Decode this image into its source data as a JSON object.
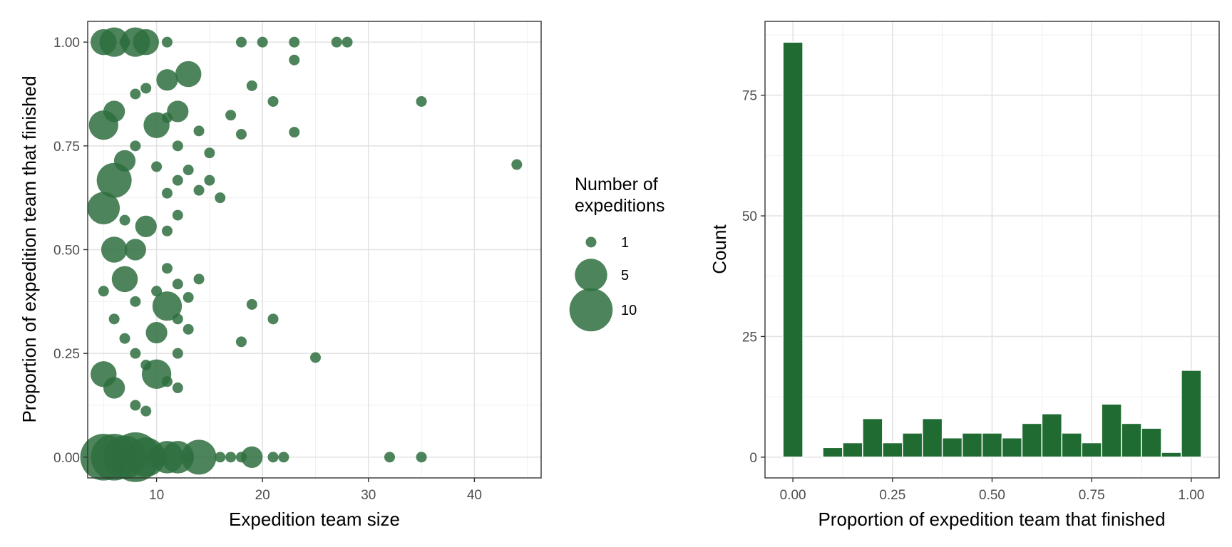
{
  "chart_data": [
    {
      "type": "scatter",
      "xlabel": "Expedition team size",
      "ylabel": "Proportion of expedition team that finished",
      "xlim": [
        3.5,
        46.3
      ],
      "ylim": [
        -0.05,
        1.05
      ],
      "x_ticks": [
        10,
        20,
        30,
        40
      ],
      "x_tick_labels": [
        "10",
        "20",
        "30",
        "40"
      ],
      "y_ticks": [
        0,
        0.25,
        0.5,
        0.75,
        1
      ],
      "y_tick_labels": [
        "0.00",
        "0.25",
        "0.50",
        "0.75",
        "1.00"
      ],
      "grid": true,
      "point_color": "#2e6e3e",
      "size_legend": {
        "title": [
          "Number of",
          "expeditions"
        ],
        "placement": "right",
        "entries": [
          {
            "label": "1",
            "value": 1
          },
          {
            "label": "5",
            "value": 5
          },
          {
            "label": "10",
            "value": 10
          }
        ]
      },
      "points": [
        {
          "x": 5,
          "y": 1,
          "n": 3
        },
        {
          "x": 6,
          "y": 1,
          "n": 4
        },
        {
          "x": 7,
          "y": 1,
          "n": 1
        },
        {
          "x": 8,
          "y": 1,
          "n": 4
        },
        {
          "x": 9,
          "y": 1,
          "n": 3
        },
        {
          "x": 11,
          "y": 1,
          "n": 1
        },
        {
          "x": 18,
          "y": 1,
          "n": 1
        },
        {
          "x": 20,
          "y": 1,
          "n": 1
        },
        {
          "x": 23,
          "y": 1,
          "n": 1
        },
        {
          "x": 27,
          "y": 1,
          "n": 1
        },
        {
          "x": 28,
          "y": 1,
          "n": 1
        },
        {
          "x": 23,
          "y": 0.957,
          "n": 1
        },
        {
          "x": 13,
          "y": 0.923,
          "n": 3
        },
        {
          "x": 11,
          "y": 0.909,
          "n": 2
        },
        {
          "x": 19,
          "y": 0.895,
          "n": 1
        },
        {
          "x": 9,
          "y": 0.889,
          "n": 1
        },
        {
          "x": 8,
          "y": 0.875,
          "n": 1
        },
        {
          "x": 21,
          "y": 0.857,
          "n": 1
        },
        {
          "x": 35,
          "y": 0.857,
          "n": 1
        },
        {
          "x": 6,
          "y": 0.833,
          "n": 2
        },
        {
          "x": 12,
          "y": 0.833,
          "n": 2
        },
        {
          "x": 17,
          "y": 0.824,
          "n": 1
        },
        {
          "x": 11,
          "y": 0.818,
          "n": 1
        },
        {
          "x": 5,
          "y": 0.8,
          "n": 4
        },
        {
          "x": 10,
          "y": 0.8,
          "n": 3
        },
        {
          "x": 14,
          "y": 0.786,
          "n": 1
        },
        {
          "x": 23,
          "y": 0.783,
          "n": 1
        },
        {
          "x": 18,
          "y": 0.778,
          "n": 1
        },
        {
          "x": 8,
          "y": 0.75,
          "n": 1
        },
        {
          "x": 12,
          "y": 0.75,
          "n": 1
        },
        {
          "x": 15,
          "y": 0.733,
          "n": 1
        },
        {
          "x": 7,
          "y": 0.714,
          "n": 2
        },
        {
          "x": 44,
          "y": 0.705,
          "n": 1
        },
        {
          "x": 10,
          "y": 0.7,
          "n": 1
        },
        {
          "x": 13,
          "y": 0.692,
          "n": 1
        },
        {
          "x": 6,
          "y": 0.667,
          "n": 6
        },
        {
          "x": 12,
          "y": 0.667,
          "n": 1
        },
        {
          "x": 15,
          "y": 0.667,
          "n": 1
        },
        {
          "x": 14,
          "y": 0.643,
          "n": 1
        },
        {
          "x": 11,
          "y": 0.636,
          "n": 1
        },
        {
          "x": 16,
          "y": 0.625,
          "n": 1
        },
        {
          "x": 5,
          "y": 0.6,
          "n": 5
        },
        {
          "x": 12,
          "y": 0.583,
          "n": 1
        },
        {
          "x": 7,
          "y": 0.571,
          "n": 1
        },
        {
          "x": 9,
          "y": 0.556,
          "n": 2
        },
        {
          "x": 11,
          "y": 0.545,
          "n": 1
        },
        {
          "x": 6,
          "y": 0.5,
          "n": 3
        },
        {
          "x": 8,
          "y": 0.5,
          "n": 2
        },
        {
          "x": 11,
          "y": 0.455,
          "n": 1
        },
        {
          "x": 7,
          "y": 0.429,
          "n": 3
        },
        {
          "x": 14,
          "y": 0.429,
          "n": 1
        },
        {
          "x": 12,
          "y": 0.417,
          "n": 1
        },
        {
          "x": 5,
          "y": 0.4,
          "n": 1
        },
        {
          "x": 10,
          "y": 0.4,
          "n": 1
        },
        {
          "x": 13,
          "y": 0.385,
          "n": 1
        },
        {
          "x": 8,
          "y": 0.375,
          "n": 1
        },
        {
          "x": 19,
          "y": 0.368,
          "n": 1
        },
        {
          "x": 11,
          "y": 0.364,
          "n": 4
        },
        {
          "x": 6,
          "y": 0.333,
          "n": 1
        },
        {
          "x": 12,
          "y": 0.333,
          "n": 1
        },
        {
          "x": 21,
          "y": 0.333,
          "n": 1
        },
        {
          "x": 13,
          "y": 0.308,
          "n": 1
        },
        {
          "x": 10,
          "y": 0.3,
          "n": 2
        },
        {
          "x": 7,
          "y": 0.286,
          "n": 1
        },
        {
          "x": 18,
          "y": 0.278,
          "n": 1
        },
        {
          "x": 8,
          "y": 0.25,
          "n": 1
        },
        {
          "x": 12,
          "y": 0.25,
          "n": 1
        },
        {
          "x": 25,
          "y": 0.24,
          "n": 1
        },
        {
          "x": 9,
          "y": 0.222,
          "n": 1
        },
        {
          "x": 5,
          "y": 0.2,
          "n": 3
        },
        {
          "x": 10,
          "y": 0.2,
          "n": 4
        },
        {
          "x": 11,
          "y": 0.182,
          "n": 1
        },
        {
          "x": 6,
          "y": 0.167,
          "n": 2
        },
        {
          "x": 12,
          "y": 0.167,
          "n": 1
        },
        {
          "x": 8,
          "y": 0.125,
          "n": 1
        },
        {
          "x": 9,
          "y": 0.111,
          "n": 1
        },
        {
          "x": 5,
          "y": 0,
          "n": 12
        },
        {
          "x": 6,
          "y": 0,
          "n": 12
        },
        {
          "x": 7,
          "y": 0,
          "n": 10
        },
        {
          "x": 8,
          "y": 0,
          "n": 14
        },
        {
          "x": 9,
          "y": 0,
          "n": 8
        },
        {
          "x": 10,
          "y": 0,
          "n": 2
        },
        {
          "x": 11,
          "y": 0,
          "n": 5
        },
        {
          "x": 12,
          "y": 0,
          "n": 5
        },
        {
          "x": 13,
          "y": 0,
          "n": 1
        },
        {
          "x": 14,
          "y": 0,
          "n": 6
        },
        {
          "x": 16,
          "y": 0,
          "n": 1
        },
        {
          "x": 17,
          "y": 0,
          "n": 1
        },
        {
          "x": 18,
          "y": 0,
          "n": 1
        },
        {
          "x": 19,
          "y": 0,
          "n": 2
        },
        {
          "x": 21,
          "y": 0,
          "n": 1
        },
        {
          "x": 22,
          "y": 0,
          "n": 1
        },
        {
          "x": 32,
          "y": 0,
          "n": 1
        },
        {
          "x": 35,
          "y": 0,
          "n": 1
        }
      ]
    },
    {
      "type": "bar",
      "xlabel": "Proportion of expedition team that finished",
      "ylabel": "Count",
      "xlim": [
        -0.07,
        1.07
      ],
      "ylim": [
        -4.3,
        90.3
      ],
      "x_ticks": [
        0,
        0.25,
        0.5,
        0.75,
        1
      ],
      "x_tick_labels": [
        "0.00",
        "0.25",
        "0.50",
        "0.75",
        "1.00"
      ],
      "y_ticks": [
        0,
        25,
        50,
        75
      ],
      "y_tick_labels": [
        "0",
        "25",
        "50",
        "75"
      ],
      "grid": true,
      "bar_color": "#1f6b32",
      "bin_width": 0.05,
      "bin_centers": [
        0,
        0.05,
        0.1,
        0.15,
        0.2,
        0.25,
        0.3,
        0.35,
        0.4,
        0.45,
        0.5,
        0.55,
        0.6,
        0.65,
        0.7,
        0.75,
        0.8,
        0.85,
        0.9,
        0.95,
        1
      ],
      "values": [
        86,
        0,
        2,
        3,
        8,
        3,
        5,
        8,
        4,
        5,
        5,
        4,
        7,
        9,
        5,
        3,
        11,
        7,
        6,
        1,
        18
      ]
    }
  ]
}
